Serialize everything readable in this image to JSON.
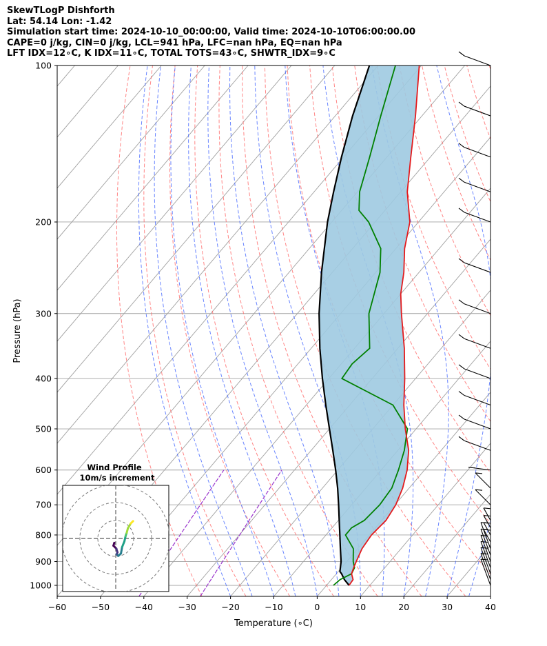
{
  "header": {
    "line1": "SkewTLogP Dishforth",
    "line2": "Lat: 54.14   Lon: -1.42",
    "line3": "Simulation start time: 2024-10-10_00:00:00, Valid time: 2024-10-10T06:00:00.00",
    "line4": "CAPE=0 j/kg, CIN=0 j/kg, LCL=941 hPa, LFC=nan hPa, EQ=nan hPa",
    "line5": "LFT IDX=12∘C, K IDX=11∘C, TOTAL TOTS=43∘C, SHWTR_IDX=9∘C"
  },
  "colors": {
    "temperature": "#e41a1c",
    "dewpoint": "#008000",
    "parcel": "#000000",
    "fill": "#9ecae1",
    "dry_adiabat": "#ff6666",
    "moist_adiabat": "#4466ff",
    "mixing_ratio": "#9933cc",
    "isotherm": "#a0a0a0"
  },
  "chart_data": {
    "type": "line",
    "xlabel": "Temperature (∘C)",
    "ylabel": "Pressure (hPa)",
    "xlim": [
      -60,
      40
    ],
    "ylim": [
      1050,
      100
    ],
    "y_scale": "log",
    "x_ticks": [
      "−60",
      "−50",
      "−40",
      "−30",
      "−20",
      "−10",
      "0",
      "10",
      "20",
      "30",
      "40"
    ],
    "y_ticks": [
      "100",
      "200",
      "300",
      "400",
      "500",
      "600",
      "700",
      "800",
      "900",
      "1000"
    ],
    "grid": true,
    "series": [
      {
        "key": "temperature",
        "pressure": [
          1000,
          975,
          950,
          925,
          900,
          850,
          800,
          750,
          700,
          650,
          600,
          550,
          500,
          450,
          400,
          350,
          300,
          275,
          250,
          225,
          200,
          175,
          150,
          125,
          100
        ],
        "values": [
          5.2,
          5.0,
          3.5,
          2.8,
          2.2,
          1.0,
          0.5,
          1.0,
          0.2,
          -1.5,
          -4.0,
          -7.5,
          -12.5,
          -17.5,
          -22.5,
          -28.5,
          -36.0,
          -40.0,
          -43.5,
          -48.0,
          -52.0,
          -58.5,
          -64.5,
          -71.5,
          -80.5
        ]
      },
      {
        "key": "dewpoint",
        "pressure": [
          1000,
          975,
          950,
          925,
          900,
          850,
          800,
          775,
          750,
          700,
          650,
          600,
          550,
          500,
          450,
          400,
          375,
          350,
          300,
          250,
          225,
          200,
          190,
          175,
          150,
          125,
          100
        ],
        "values": [
          1.6,
          2.0,
          3.5,
          3.0,
          1.5,
          -1.0,
          -5.5,
          -5.5,
          -4.0,
          -3.5,
          -4.0,
          -6.0,
          -8.5,
          -12.0,
          -20.0,
          -37.0,
          -37.5,
          -36.5,
          -43.5,
          -49.0,
          -53.5,
          -61.5,
          -66.0,
          -69.5,
          -74.0,
          -79.5,
          -86.0
        ]
      },
      {
        "key": "parcel",
        "pressure": [
          1000,
          975,
          950,
          941,
          900,
          850,
          800,
          750,
          700,
          650,
          600,
          550,
          500,
          450,
          400,
          350,
          300,
          250,
          200,
          175,
          150,
          125,
          100
        ],
        "values": [
          5.2,
          3.0,
          1.2,
          0.4,
          -1.3,
          -4.0,
          -6.8,
          -9.8,
          -13.0,
          -16.5,
          -20.5,
          -25.0,
          -30.0,
          -35.5,
          -41.5,
          -48.0,
          -55.0,
          -62.5,
          -71.0,
          -75.5,
          -80.5,
          -86.0,
          -92.0
        ]
      }
    ],
    "hodograph": {
      "title": "Wind Profile",
      "subtitle": "10m/s increment",
      "u": [
        -0.5,
        -0.8,
        0.2,
        0.6,
        0.3,
        0.9,
        1.8,
        2.2,
        3.0,
        3.4,
        3.8,
        4.2,
        5.2,
        6.0
      ],
      "v": [
        -1.5,
        -2.5,
        -3.5,
        -4.8,
        -5.5,
        -6.0,
        -5.2,
        -3.0,
        -1.0,
        0.8,
        2.0,
        3.5,
        5.2,
        6.0
      ]
    }
  }
}
